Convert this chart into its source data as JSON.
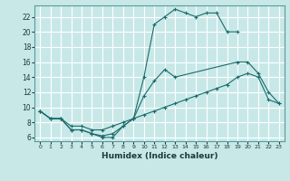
{
  "xlabel": "Humidex (Indice chaleur)",
  "bg_color": "#c8e8e8",
  "grid_color": "#ffffff",
  "line_color": "#1a6b6b",
  "xlim": [
    -0.5,
    23.5
  ],
  "ylim": [
    5.5,
    23.5
  ],
  "yticks": [
    6,
    8,
    10,
    12,
    14,
    16,
    18,
    20,
    22
  ],
  "xticks": [
    0,
    1,
    2,
    3,
    4,
    5,
    6,
    7,
    8,
    9,
    10,
    11,
    12,
    13,
    14,
    15,
    16,
    17,
    18,
    19,
    20,
    21,
    22,
    23
  ],
  "line1_x": [
    0,
    1,
    2,
    3,
    4,
    5,
    6,
    7,
    8,
    9,
    10,
    11,
    12,
    13,
    14,
    15,
    16,
    17,
    18,
    19
  ],
  "line1_y": [
    9.5,
    8.5,
    8.5,
    7.0,
    7.0,
    6.5,
    6.0,
    6.0,
    7.5,
    8.5,
    14.0,
    21.0,
    22.0,
    23.0,
    22.5,
    22.0,
    22.5,
    22.5,
    20.0,
    20.0
  ],
  "line2_x": [
    0,
    1,
    2,
    3,
    4,
    5,
    6,
    7,
    8,
    9,
    10,
    11,
    12,
    13,
    19,
    20,
    21,
    22,
    23
  ],
  "line2_y": [
    9.5,
    8.5,
    8.5,
    7.0,
    7.0,
    6.5,
    6.2,
    6.5,
    7.5,
    8.5,
    11.5,
    13.5,
    15.0,
    14.0,
    16.0,
    16.0,
    14.5,
    12.0,
    10.5
  ],
  "line3_x": [
    0,
    1,
    2,
    3,
    4,
    5,
    6,
    7,
    8,
    9,
    10,
    11,
    12,
    13,
    14,
    15,
    16,
    17,
    18,
    19,
    20,
    21,
    22,
    23
  ],
  "line3_y": [
    9.5,
    8.5,
    8.5,
    7.5,
    7.5,
    7.0,
    7.0,
    7.5,
    8.0,
    8.5,
    9.0,
    9.5,
    10.0,
    10.5,
    11.0,
    11.5,
    12.0,
    12.5,
    13.0,
    14.0,
    14.5,
    14.0,
    11.0,
    10.5
  ]
}
